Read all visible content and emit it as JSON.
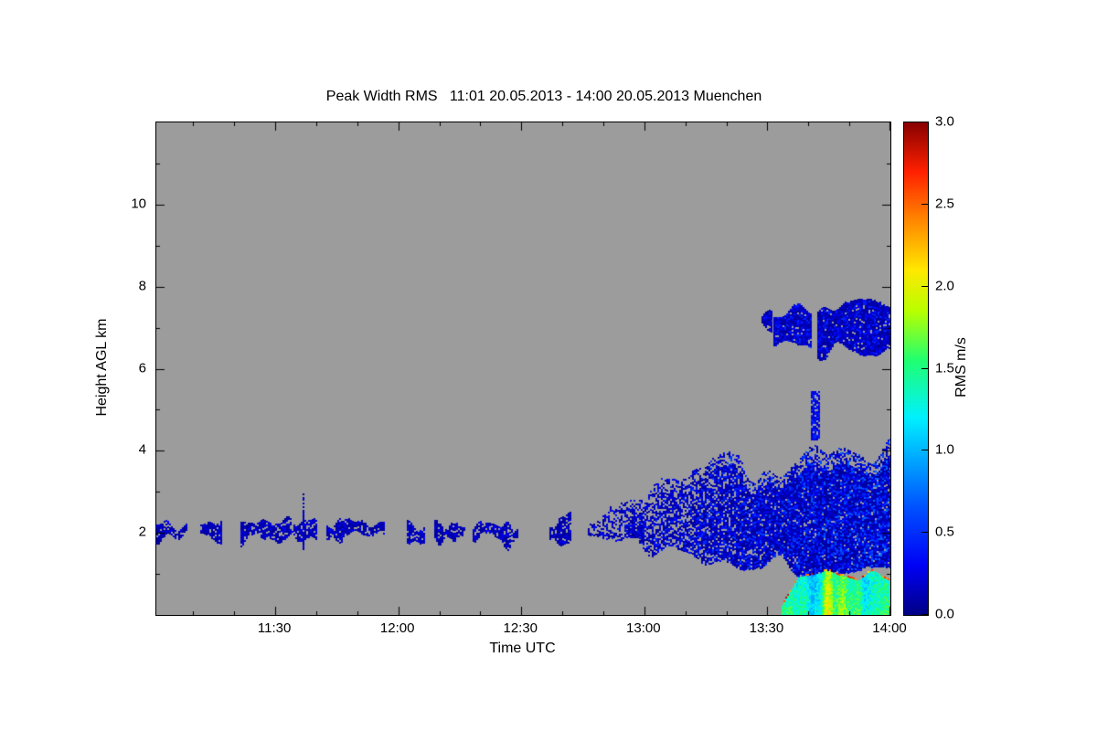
{
  "chart_data": {
    "type": "heatmap",
    "title": "Peak Width RMS   11:01 20.05.2013 - 14:00 20.05.2013 Muenchen",
    "station": "Muenchen",
    "time_start": "11:01 20.05.2013",
    "time_end": "14:00 20.05.2013",
    "xlabel": "Time UTC",
    "ylabel": "Height AGL km",
    "x_minutes_range": [
      661,
      840
    ],
    "x_ticks": [
      {
        "label": "11:30",
        "minutes": 690
      },
      {
        "label": "12:00",
        "minutes": 720
      },
      {
        "label": "12:30",
        "minutes": 750
      },
      {
        "label": "13:00",
        "minutes": 780
      },
      {
        "label": "13:30",
        "minutes": 810
      },
      {
        "label": "14:00",
        "minutes": 840
      }
    ],
    "x_minor_step_minutes": 10,
    "ylim_km": [
      0,
      12
    ],
    "y_ticks_km": [
      2,
      4,
      6,
      8,
      10
    ],
    "y_minor_step_km": 1,
    "background_color": "#9c9c9c",
    "grid": false,
    "colorbar": {
      "label": "RMS m/s",
      "min": 0,
      "max": 3,
      "ticks": [
        "0.0",
        "0.5",
        "1.0",
        "1.5",
        "2.0",
        "2.5",
        "3.0"
      ],
      "stops": [
        {
          "v": 0.0,
          "c": "#000085"
        },
        {
          "v": 0.3,
          "c": "#0000f5"
        },
        {
          "v": 0.65,
          "c": "#0050ff"
        },
        {
          "v": 0.95,
          "c": "#00a8ff"
        },
        {
          "v": 1.2,
          "c": "#00f0ff"
        },
        {
          "v": 1.55,
          "c": "#20ff70"
        },
        {
          "v": 1.85,
          "c": "#b8ff00"
        },
        {
          "v": 2.1,
          "c": "#ffe800"
        },
        {
          "v": 2.4,
          "c": "#ff8800"
        },
        {
          "v": 2.7,
          "c": "#ff2000"
        },
        {
          "v": 3.0,
          "c": "#870000"
        }
      ]
    },
    "regions": [
      {
        "type": "patchy-layer",
        "name": "residual-aerosol-layer",
        "t_minutes": [
          661,
          780
        ],
        "center_km": 2.05,
        "half_width_km": 0.22,
        "gap_threshold": 0.34,
        "rms_range": [
          0.05,
          0.32
        ],
        "spike_km": 0.8
      },
      {
        "type": "cumulus-band",
        "name": "boundary-layer-cloud-band",
        "t_minutes": [
          751,
          840
        ],
        "top_km": [
          2.25,
          4.35
        ],
        "bottom_km": [
          1.95,
          0.95
        ],
        "rms_range": [
          0.05,
          0.62
        ]
      },
      {
        "type": "blob",
        "name": "mid-level-cloud-fragment",
        "t_minutes": [
          808.5,
          811
        ],
        "center_km": 7.28,
        "half_km": 0.24,
        "rms_range": [
          0.05,
          0.4
        ]
      },
      {
        "type": "blob",
        "name": "mid-level-cloud",
        "t_minutes": [
          811.5,
          840
        ],
        "center_km": 6.95,
        "half_km": 0.7,
        "gap_minutes": 821.5,
        "rms_range": [
          0.05,
          0.5
        ]
      },
      {
        "type": "streak",
        "name": "vertical-plume",
        "t_minutes": [
          820.6,
          822.2
        ],
        "h_km": [
          4.25,
          5.45
        ],
        "rms_range": [
          0.1,
          0.5
        ]
      },
      {
        "type": "surface",
        "name": "near-surface-high-rms",
        "t_minutes": [
          813.5,
          840
        ],
        "top_km": 1.05,
        "rms_range": [
          0.6,
          2.0
        ],
        "top_edge_dots_rms": [
          2.1,
          2.9
        ]
      }
    ]
  }
}
